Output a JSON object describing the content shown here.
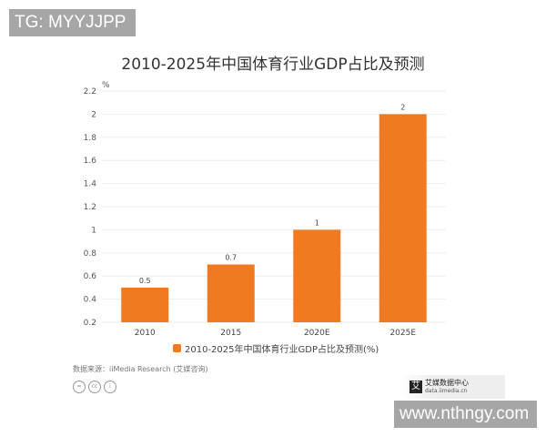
{
  "watermark_top": "TG: MYYJJPP",
  "watermark_bottom": "www.nthngy.com",
  "chart_data": {
    "type": "bar",
    "title": "2010-2025年中国体育行业GDP占比及预测",
    "ylabel": "%",
    "xlabel": "",
    "categories": [
      "2010",
      "2015",
      "2020E",
      "2025E"
    ],
    "values": [
      0.5,
      0.7,
      1,
      2
    ],
    "data_labels": [
      "0.5",
      "0.7",
      "1",
      "2"
    ],
    "ylim": [
      0.2,
      2.2
    ],
    "yticks": [
      "0.2",
      "0.4",
      "0.6",
      "0.8",
      "1",
      "1.2",
      "1.4",
      "1.6",
      "1.8",
      "2",
      "2.2"
    ],
    "grid": true,
    "legend": {
      "entries": [
        "2010-2025年中国体育行业GDP占比及预测(%)"
      ],
      "placement": "bottom"
    },
    "color": "#f07a22"
  },
  "source": "数据来源：iiMedia Research (艾媒咨询)",
  "license_icons": [
    "=",
    "cc",
    "i"
  ],
  "logo": {
    "name": "艾媒数据中心",
    "url": "data.iimedia.cn",
    "mark": "艾"
  }
}
